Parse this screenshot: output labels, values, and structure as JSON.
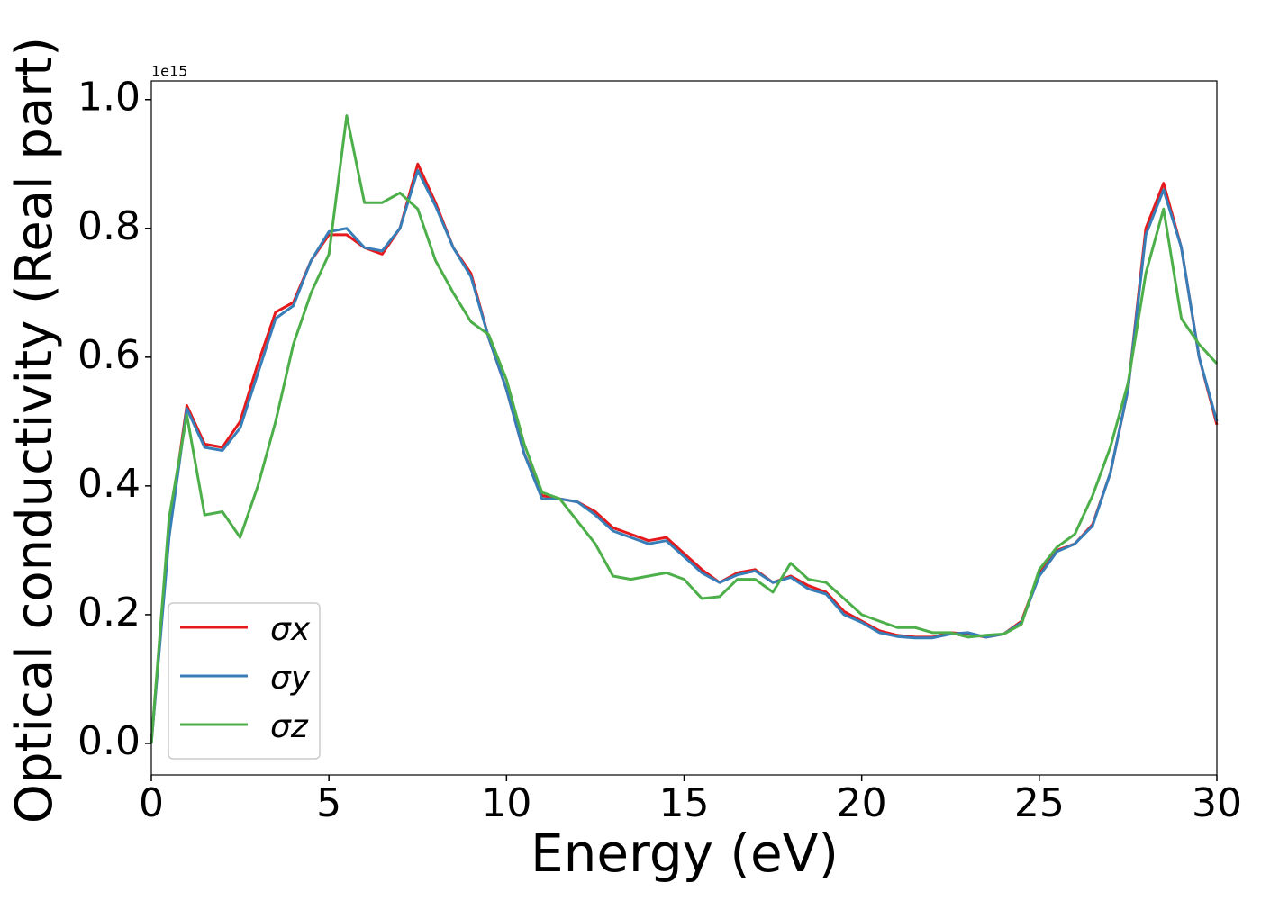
{
  "chart_data": {
    "type": "line",
    "xlabel": "Energy (eV)",
    "ylabel": "Optical conductivity (Real part)",
    "y_offset_label": "1e15",
    "x": [
      0,
      0.5,
      1,
      1.5,
      2,
      2.5,
      3,
      3.5,
      4,
      4.5,
      5,
      5.5,
      6,
      6.5,
      7,
      7.5,
      8,
      8.5,
      9,
      9.5,
      10,
      10.5,
      11,
      11.5,
      12,
      12.5,
      13,
      13.5,
      14,
      14.5,
      15,
      15.5,
      16,
      16.5,
      17,
      17.5,
      18,
      18.5,
      19,
      19.5,
      20,
      20.5,
      21,
      21.5,
      22,
      22.5,
      23,
      23.5,
      24,
      24.5,
      25,
      25.5,
      26,
      26.5,
      27,
      27.5,
      28,
      28.5,
      29,
      29.5,
      30
    ],
    "series": [
      {
        "name": "σx",
        "color": "#e41a1c",
        "values": [
          0,
          0.33,
          0.525,
          0.465,
          0.46,
          0.5,
          0.59,
          0.67,
          0.685,
          0.75,
          0.79,
          0.79,
          0.77,
          0.76,
          0.8,
          0.9,
          0.84,
          0.77,
          0.73,
          0.63,
          0.55,
          0.45,
          0.385,
          0.38,
          0.375,
          0.36,
          0.335,
          0.325,
          0.315,
          0.32,
          0.295,
          0.27,
          0.25,
          0.265,
          0.27,
          0.25,
          0.26,
          0.245,
          0.235,
          0.205,
          0.19,
          0.175,
          0.168,
          0.165,
          0.165,
          0.172,
          0.17,
          0.165,
          0.17,
          0.19,
          0.265,
          0.3,
          0.31,
          0.34,
          0.42,
          0.55,
          0.8,
          0.87,
          0.77,
          0.6,
          0.495
        ]
      },
      {
        "name": "σy",
        "color": "#377eb8",
        "values": [
          0,
          0.32,
          0.52,
          0.46,
          0.455,
          0.49,
          0.575,
          0.66,
          0.68,
          0.75,
          0.795,
          0.8,
          0.77,
          0.765,
          0.8,
          0.89,
          0.835,
          0.77,
          0.725,
          0.63,
          0.55,
          0.45,
          0.38,
          0.38,
          0.375,
          0.355,
          0.33,
          0.32,
          0.31,
          0.315,
          0.29,
          0.265,
          0.25,
          0.262,
          0.268,
          0.25,
          0.258,
          0.24,
          0.232,
          0.2,
          0.188,
          0.172,
          0.166,
          0.164,
          0.164,
          0.17,
          0.172,
          0.165,
          0.17,
          0.188,
          0.26,
          0.298,
          0.31,
          0.338,
          0.42,
          0.55,
          0.79,
          0.86,
          0.77,
          0.6,
          0.5
        ]
      },
      {
        "name": "σz",
        "color": "#4daf4a",
        "values": [
          0,
          0.35,
          0.51,
          0.355,
          0.36,
          0.32,
          0.4,
          0.5,
          0.62,
          0.7,
          0.76,
          0.975,
          0.84,
          0.84,
          0.855,
          0.83,
          0.75,
          0.7,
          0.655,
          0.635,
          0.565,
          0.465,
          0.39,
          0.38,
          0.345,
          0.31,
          0.26,
          0.255,
          0.26,
          0.265,
          0.255,
          0.225,
          0.228,
          0.255,
          0.255,
          0.235,
          0.28,
          0.255,
          0.25,
          0.225,
          0.2,
          0.19,
          0.18,
          0.18,
          0.172,
          0.172,
          0.165,
          0.168,
          0.17,
          0.185,
          0.27,
          0.305,
          0.325,
          0.385,
          0.46,
          0.56,
          0.73,
          0.83,
          0.66,
          0.62,
          0.59
        ]
      }
    ],
    "xlim": [
      0,
      30
    ],
    "xticks": [
      0,
      5,
      10,
      15,
      20,
      25,
      30
    ],
    "ylim": [
      -0.049,
      1.029
    ],
    "yticks": [
      {
        "value": 0,
        "label": "0.0"
      },
      0.2,
      0.4,
      0.6,
      0.8,
      {
        "value": 1,
        "label": "1.0"
      }
    ],
    "legend": "lower left",
    "grid": false
  }
}
